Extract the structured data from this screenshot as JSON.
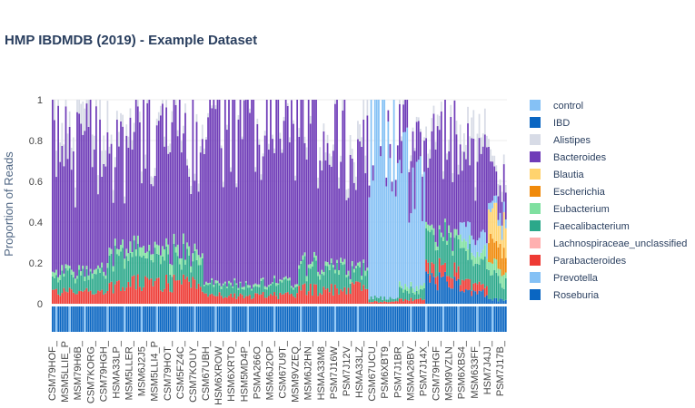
{
  "chart_data": {
    "type": "bar",
    "stacked": true,
    "title": "HMP IBDMDB (2019) - Example Dataset",
    "ylabel": "Proportion of Reads",
    "ylim": [
      0,
      1
    ],
    "yticks": [
      0,
      0.2,
      0.4,
      0.6,
      0.8,
      1
    ],
    "ytick_labels": [
      "0",
      "0.2",
      "0.4",
      "0.6",
      "0.8",
      "1"
    ],
    "num_samples": 240,
    "x_tick_labels": [
      "CSM79HOF_",
      "MSM5LLIE_P",
      "MSM79H6B_",
      "CSM7KORG_",
      "CSM79HGH_",
      "HSMA33LP_",
      "MSM5LLER_",
      "MSM6J2J5_",
      "MSM5LLI4_P",
      "CSM79HOT_",
      "CSM5FZ4C_",
      "CSM7KOUY_",
      "CSM67UBH_",
      "HSM6XROW_",
      "HSM6XRTO_",
      "HSM5MD4P_",
      "PSMA266O_",
      "MSM6J2OP_",
      "CSM67U9T_",
      "MSM9VZEQ_",
      "MSM6J2HN_",
      "HSMA33M8_",
      "PSM7J16W_",
      "PSM7J12V_",
      "HSMA33LZ_",
      "CSM67UCU_",
      "PSM6XBT9_",
      "PSM7J1BR_",
      "MSMA26BV_",
      "PSM7J14X_",
      "CSM79HGF_",
      "MSM9VZLN_",
      "PSM6XBS4_",
      "MSM633FF_",
      "HSM7J4JJ_",
      "PSM7J17B_"
    ],
    "group_legend": [
      {
        "name": "control",
        "color": "#85c1f5"
      },
      {
        "name": "IBD",
        "color": "#0a66c2"
      }
    ],
    "taxa_legend": [
      {
        "name": "Alistipes",
        "color": "#d7dbe6"
      },
      {
        "name": "Bacteroides",
        "color": "#6f3cb8"
      },
      {
        "name": "Blautia",
        "color": "#ffd36e"
      },
      {
        "name": "Escherichia",
        "color": "#f08a0a"
      },
      {
        "name": "Eubacterium",
        "color": "#7fe0a0"
      },
      {
        "name": "Faecalibacterium",
        "color": "#2ba88a"
      },
      {
        "name": "Lachnospiraceae_unclassified",
        "color": "#ffb0b0"
      },
      {
        "name": "Parabacteroides",
        "color": "#ee3a34"
      },
      {
        "name": "Prevotella",
        "color": "#85c1f5"
      },
      {
        "name": "Roseburia",
        "color": "#0a66c2"
      }
    ],
    "regions": [
      {
        "start": 0,
        "end": 30,
        "parabacteroides": 0.06,
        "faecalibacterium": 0.08,
        "eubacterium": 0.02,
        "bacteroides": 0.63,
        "alistipes": 0.12,
        "prevotella": 0.0
      },
      {
        "start": 30,
        "end": 40,
        "parabacteroides": 0.08,
        "faecalibacterium": 0.16,
        "eubacterium": 0.04,
        "bacteroides": 0.47,
        "alistipes": 0.05,
        "prevotella": 0.0
      },
      {
        "start": 40,
        "end": 80,
        "parabacteroides": 0.1,
        "faecalibacterium": 0.12,
        "eubacterium": 0.04,
        "bacteroides": 0.55,
        "alistipes": 0.05,
        "prevotella": 0.0
      },
      {
        "start": 80,
        "end": 130,
        "parabacteroides": 0.04,
        "faecalibacterium": 0.05,
        "eubacterium": 0.01,
        "bacteroides": 0.85,
        "alistipes": 0.02,
        "prevotella": 0.0
      },
      {
        "start": 130,
        "end": 155,
        "parabacteroides": 0.07,
        "faecalibacterium": 0.1,
        "eubacterium": 0.02,
        "bacteroides": 0.7,
        "alistipes": 0.05,
        "prevotella": 0.0
      },
      {
        "start": 155,
        "end": 167,
        "parabacteroides": 0.08,
        "faecalibacterium": 0.08,
        "eubacterium": 0.02,
        "bacteroides": 0.65,
        "alistipes": 0.08,
        "prevotella": 0.0
      },
      {
        "start": 167,
        "end": 183,
        "parabacteroides": 0.01,
        "faecalibacterium": 0.02,
        "eubacterium": 0.0,
        "bacteroides": 0.06,
        "alistipes": 0.0,
        "prevotella": 0.85
      },
      {
        "start": 183,
        "end": 197,
        "parabacteroides": 0.02,
        "faecalibacterium": 0.04,
        "eubacterium": 0.02,
        "bacteroides": 0.2,
        "alistipes": 0.02,
        "prevotella": 0.55
      },
      {
        "start": 197,
        "end": 215,
        "roseburia": 0.12,
        "parabacteroides": 0.05,
        "faecalibacterium": 0.15,
        "eubacterium": 0.03,
        "bacteroides": 0.45,
        "alistipes": 0.05,
        "prevotella": 0.0
      },
      {
        "start": 215,
        "end": 230,
        "roseburia": 0.05,
        "parabacteroides": 0.04,
        "faecalibacterium": 0.15,
        "eubacterium": 0.05,
        "bacteroides": 0.35,
        "alistipes": 0.1,
        "prevotella": 0.1
      },
      {
        "start": 230,
        "end": 240,
        "roseburia": 0.02,
        "blautia": 0.15,
        "escherichia": 0.1,
        "faecalibacterium": 0.1,
        "eubacterium": 0.05,
        "bacteroides": 0.2,
        "alistipes": 0.05,
        "prevotella": 0.05
      }
    ],
    "control_samples": [
      2,
      9,
      17,
      29,
      38,
      47,
      55,
      66,
      75,
      86,
      94,
      103,
      117,
      131,
      140,
      149,
      161,
      189,
      197,
      206,
      214,
      224,
      232
    ]
  }
}
